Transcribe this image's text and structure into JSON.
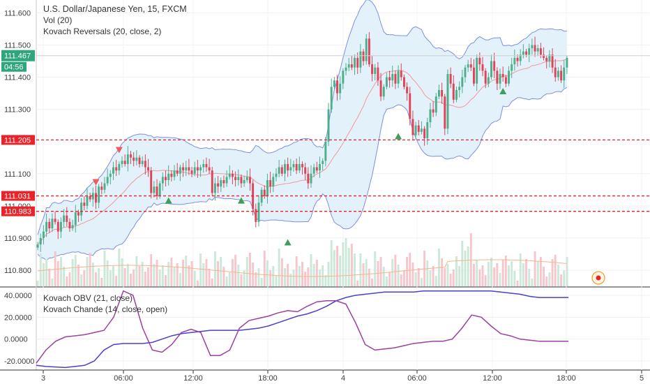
{
  "legend": {
    "title": "U.S. Dollar/Japanese Yen, 15, FXCM",
    "vol": "Vol (20)",
    "reversals": "Kovach Reversals (20, close, 2)"
  },
  "indicator_legend": {
    "obv": "Kovach OBV (21, close)",
    "chande": "Kovach Chande (14, close, open)"
  },
  "price_tag": {
    "value": "111.467",
    "countdown": "04:56",
    "color": "#2fa57d"
  },
  "levels": [
    {
      "value": 111.205,
      "label": "111.205",
      "color": "#e8232a"
    },
    {
      "value": 111.031,
      "label": "111.031",
      "color": "#e8232a"
    },
    {
      "value": 110.983,
      "label": "110.983",
      "color": "#e8232a"
    }
  ],
  "colors": {
    "up": "#4caf8a",
    "down": "#e04356",
    "band_fill": "#e3f1fb",
    "band_line": "#7b8fe3",
    "ma": "#ef9a9a",
    "obv": "#4a3fcf",
    "chande": "#9c3fa0"
  },
  "chart_data": [
    {
      "type": "candlestick",
      "ylim": [
        110.75,
        111.64
      ],
      "yticks": [
        "111.600",
        "111.500",
        "111.400",
        "111.300",
        "111.205",
        "111.100",
        "111.031",
        "111.000",
        "110.983",
        "110.900",
        "110.800"
      ],
      "x_ticks": [
        "3",
        "06:00",
        "12:00",
        "18:00",
        "4",
        "06:00",
        "12:00",
        "18:00",
        "5"
      ],
      "close": [
        110.88,
        110.9,
        110.92,
        110.95,
        110.93,
        110.96,
        110.95,
        110.92,
        110.95,
        110.97,
        110.95,
        110.93,
        110.94,
        110.98,
        110.97,
        111.01,
        111.0,
        111.03,
        111.02,
        111.04,
        111.01,
        111.06,
        111.05,
        111.07,
        111.09,
        111.1,
        111.12,
        111.11,
        111.13,
        111.14,
        111.13,
        111.16,
        111.15,
        111.14,
        111.15,
        111.13,
        111.14,
        111.12,
        111.11,
        111.04,
        111.06,
        111.03,
        111.07,
        111.09,
        111.08,
        111.1,
        111.09,
        111.11,
        111.1,
        111.12,
        111.11,
        111.12,
        111.11,
        111.1,
        111.12,
        111.11,
        111.12,
        111.13,
        111.12,
        111.11,
        111.04,
        111.07,
        111.06,
        111.08,
        111.07,
        111.09,
        111.1,
        111.09,
        111.08,
        111.09,
        111.07,
        111.08,
        111.09,
        111.07,
        110.99,
        110.95,
        111.01,
        111.05,
        111.03,
        111.08,
        111.06,
        111.09,
        111.1,
        111.12,
        111.1,
        111.13,
        111.11,
        111.12,
        111.13,
        111.11,
        111.13,
        111.12,
        111.1,
        111.07,
        111.1,
        111.12,
        111.11,
        111.13,
        111.14,
        111.2,
        111.3,
        111.37,
        111.39,
        111.35,
        111.38,
        111.42,
        111.43,
        111.44,
        111.43,
        111.46,
        111.43,
        111.48,
        111.45,
        111.52,
        111.44,
        111.41,
        111.43,
        111.39,
        111.34,
        111.37,
        111.4,
        111.39,
        111.41,
        111.38,
        111.42,
        111.4,
        111.37,
        111.35,
        111.27,
        111.22,
        111.25,
        111.23,
        111.24,
        111.21,
        111.26,
        111.3,
        111.29,
        111.34,
        111.36,
        111.34,
        111.24,
        111.41,
        111.38,
        111.33,
        111.36,
        111.37,
        111.4,
        111.43,
        111.44,
        111.43,
        111.38,
        111.46,
        111.44,
        111.42,
        111.38,
        111.4,
        111.45,
        111.42,
        111.38,
        111.41,
        111.4,
        111.38,
        111.42,
        111.44,
        111.46,
        111.45,
        111.47,
        111.48,
        111.47,
        111.49,
        111.5,
        111.48,
        111.49,
        111.47,
        111.46,
        111.45,
        111.47,
        111.43,
        111.4,
        111.42,
        111.39,
        111.43,
        111.46
      ]
    },
    {
      "type": "line",
      "ylim": [
        -27,
        47
      ],
      "yticks": [
        "40.0000",
        "20.0000",
        "0.0000",
        "-20.0000"
      ],
      "series": [
        {
          "name": "Kovach OBV (21, close)",
          "x": [
            0,
            20,
            40,
            60,
            80,
            100,
            120,
            140,
            160,
            180,
            200,
            220,
            240,
            260,
            280,
            300,
            320,
            340,
            360,
            380,
            400,
            420,
            440,
            460,
            480,
            500,
            520,
            540,
            560,
            580,
            600,
            620,
            640,
            660,
            680,
            700,
            720,
            740,
            760,
            780,
            800,
            820,
            840,
            860,
            880,
            900,
            920,
            940,
            960,
            980,
            1000,
            1020,
            1040,
            1060,
            1080,
            1100
          ],
          "values": [
            -24,
            -25,
            -25.5,
            -26,
            -25,
            -24,
            -20,
            -10,
            -5,
            -4,
            -4,
            -4,
            -3,
            0,
            3,
            5,
            6,
            7,
            8,
            8,
            8,
            8,
            9,
            10,
            12,
            15,
            18,
            21,
            23,
            26,
            30,
            35,
            38,
            40,
            41,
            42,
            43,
            43,
            43,
            43,
            44,
            44,
            44,
            44,
            44,
            44,
            44,
            44,
            43,
            42,
            41,
            39,
            38,
            38,
            38,
            38
          ]
        },
        {
          "name": "Kovach Chande (14, close, open)",
          "x": [
            0,
            20,
            40,
            60,
            80,
            100,
            120,
            140,
            160,
            180,
            200,
            220,
            240,
            260,
            280,
            300,
            320,
            340,
            360,
            380,
            400,
            420,
            440,
            460,
            480,
            500,
            520,
            540,
            560,
            580,
            600,
            620,
            640,
            660,
            680,
            700,
            720,
            740,
            760,
            780,
            800,
            820,
            840,
            860,
            880,
            900,
            920,
            940,
            960,
            980,
            1000,
            1020,
            1040,
            1060,
            1080,
            1100
          ],
          "values": [
            -22,
            -10,
            -2,
            2,
            3,
            4,
            6,
            8,
            20,
            44,
            40,
            10,
            -10,
            -12,
            -5,
            6,
            9,
            6,
            -15,
            -15,
            -10,
            10,
            17,
            19,
            21,
            24,
            26,
            25,
            30,
            34,
            35,
            35,
            32,
            15,
            -5,
            -10,
            -9,
            -8,
            -6,
            -4,
            -3,
            -2,
            -2,
            0,
            10,
            22,
            20,
            12,
            5,
            3,
            0,
            -1,
            -2,
            -2,
            -2,
            -2
          ]
        }
      ]
    }
  ]
}
